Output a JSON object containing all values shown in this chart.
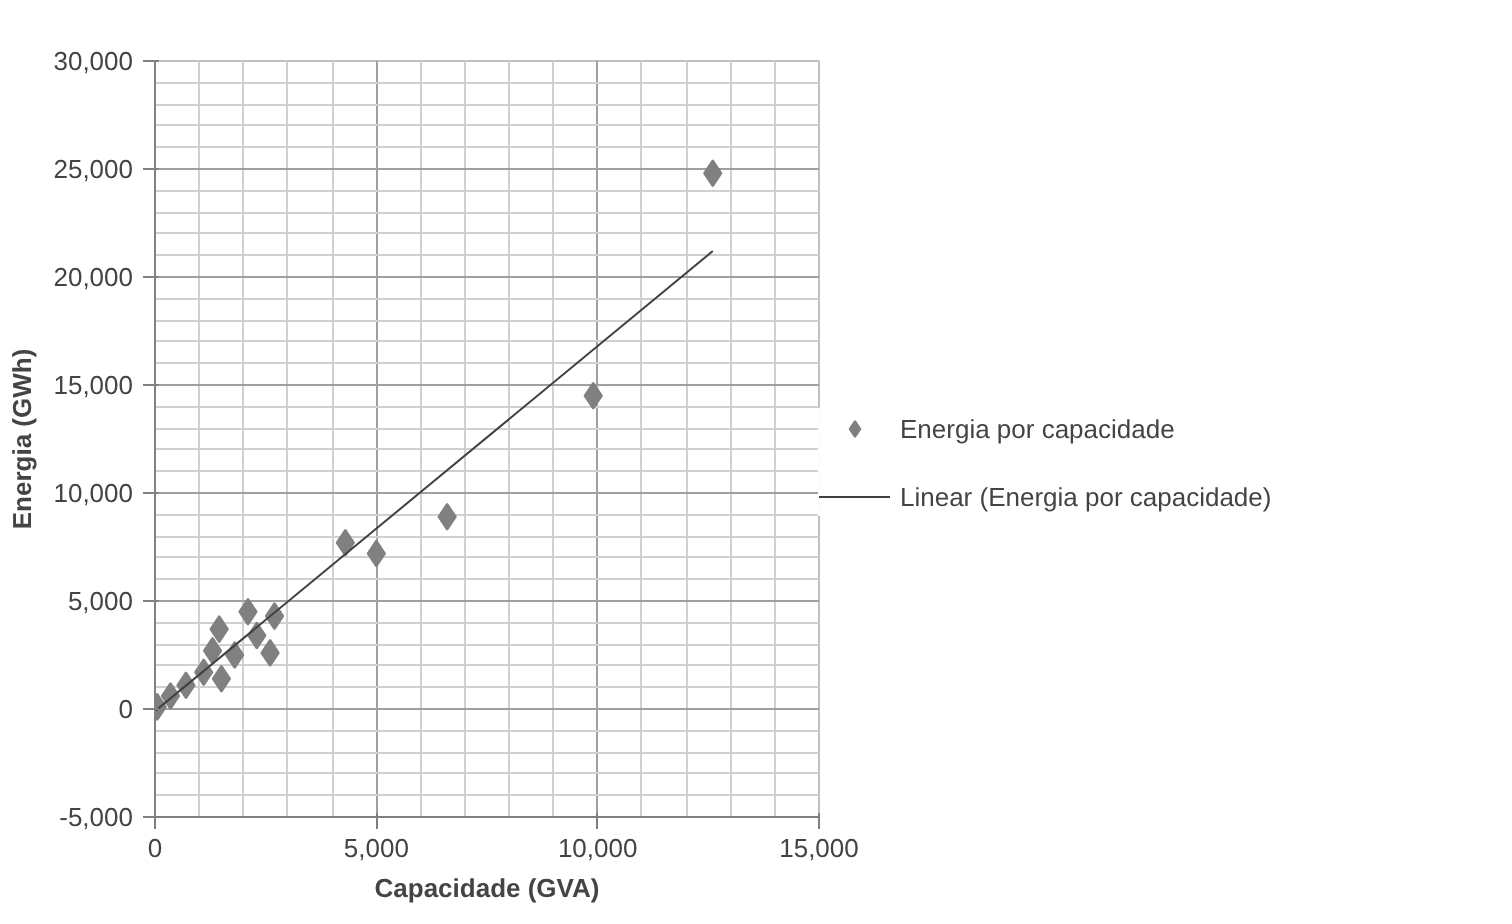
{
  "chart_data": {
    "type": "scatter",
    "xlabel": "Capacidade (GVA)",
    "ylabel": "Energia (GWh)",
    "xlim": [
      0,
      15000
    ],
    "ylim": [
      -5000,
      30000
    ],
    "xticks": [
      {
        "value": 0,
        "label": "0"
      },
      {
        "value": 5000,
        "label": "5,000"
      },
      {
        "value": 10000,
        "label": "10,000"
      },
      {
        "value": 15000,
        "label": "15,000"
      }
    ],
    "yticks": [
      {
        "value": -5000,
        "label": "-5,000"
      },
      {
        "value": 0,
        "label": "0"
      },
      {
        "value": 5000,
        "label": "5,000"
      },
      {
        "value": 10000,
        "label": "10,000"
      },
      {
        "value": 15000,
        "label": "15,000"
      },
      {
        "value": 20000,
        "label": "20,000"
      },
      {
        "value": 25000,
        "label": "25,000"
      },
      {
        "value": 30000,
        "label": "30,000"
      }
    ],
    "grid": true,
    "legend": "right",
    "series": [
      {
        "name": "Energia por capacidade",
        "color": "#808080",
        "marker": "diamond",
        "x": [
          12600,
          9900,
          6600,
          5000,
          4300,
          2700,
          2600,
          2300,
          2100,
          1800,
          1450,
          1300,
          1500,
          1100,
          700,
          350,
          50
        ],
        "values": [
          24800,
          14500,
          8900,
          7200,
          7700,
          4300,
          2600,
          3400,
          4500,
          2500,
          3700,
          2700,
          1400,
          1700,
          1100,
          600,
          100
        ]
      },
      {
        "name": "Linear (Energia por capacidade)",
        "color": "#404040",
        "type": "line",
        "line_style": "solid",
        "x": [
          0,
          12600
        ],
        "values": [
          -100,
          21200
        ]
      }
    ]
  }
}
